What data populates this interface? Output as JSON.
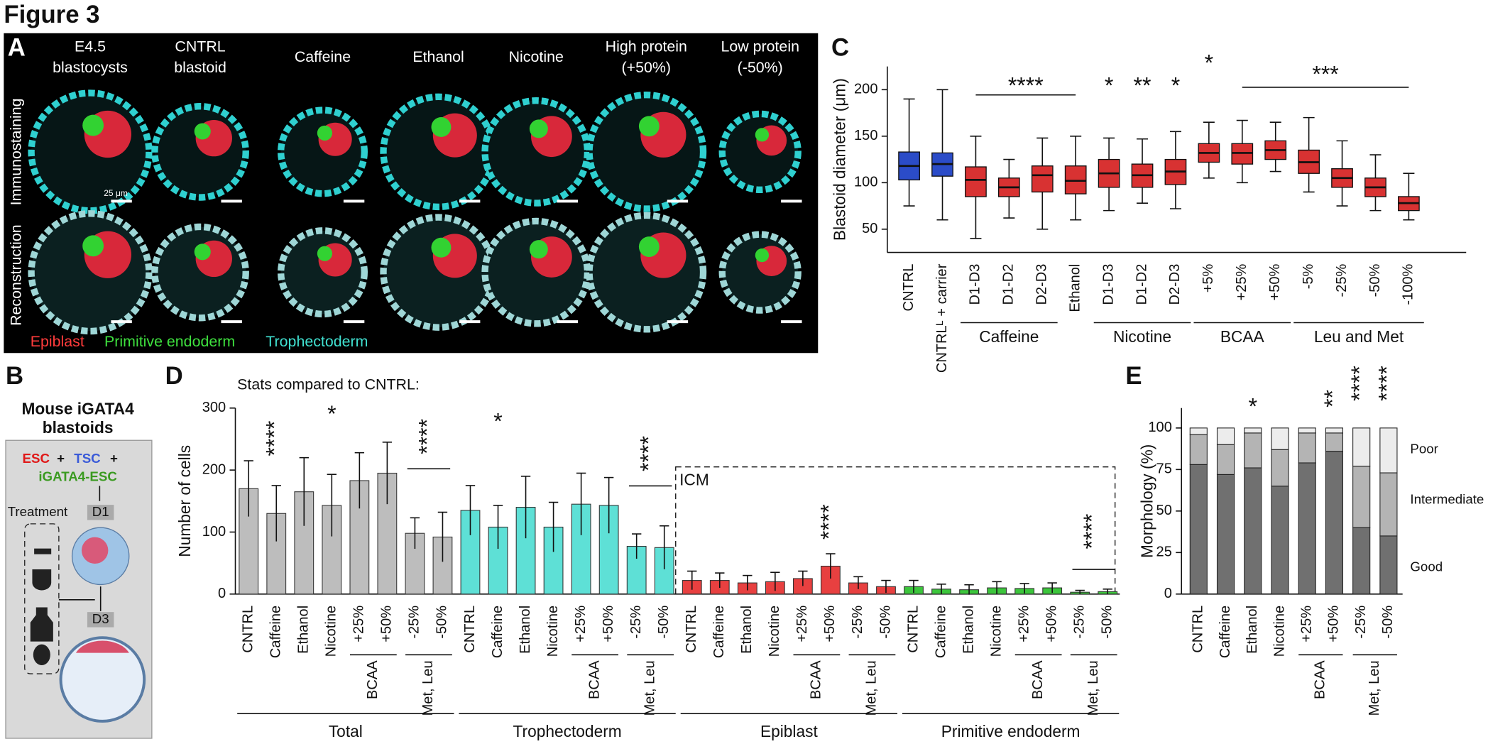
{
  "figure": {
    "title": "Figure 3",
    "panel_labels": [
      "A",
      "B",
      "C",
      "D",
      "E"
    ]
  },
  "panel_a": {
    "columns": [
      [
        "E4.5",
        "blastocysts"
      ],
      [
        "CNTRL",
        "blastoid"
      ],
      [
        "Caffeine"
      ],
      [
        "Ethanol"
      ],
      [
        "Nicotine"
      ],
      [
        "High protein",
        "(+50%)"
      ],
      [
        "Low protein",
        "(-50%)"
      ]
    ],
    "rows": [
      "Immunostaining",
      "Reconstruction"
    ],
    "legend": [
      "Epiblast",
      "Primitive endoderm",
      "Trophectoderm"
    ],
    "scale_bar": "25 μm"
  },
  "panel_b": {
    "title": [
      "Mouse iGATA4",
      "blastoids"
    ],
    "cells": [
      "ESC",
      "+",
      "TSC",
      "+",
      "iGATA4-ESC"
    ],
    "treatment": "Treatment",
    "days": [
      "D1",
      "D3"
    ]
  },
  "chart_data": [
    {
      "type": "box",
      "ylabel": "Blastoid diameter (μm)",
      "categories": [
        "CNTRL",
        "CNTRLᴸ + carrier",
        "D1-D3",
        "D1-D2",
        "D2-D3",
        "Ethanol",
        "D1-D3",
        "D1-D2",
        "D2-D3",
        "+5%",
        "+25%",
        "+50%",
        "-5%",
        "-25%",
        "-50%",
        "-100%"
      ],
      "groups": [
        "Caffeine",
        "Nicotine",
        "BCAA",
        "Leu and Met"
      ],
      "annotations": [
        "****",
        "*",
        "**",
        "*",
        "*",
        "***"
      ],
      "colors": [
        "#2b4cc8",
        "#2b4cc8",
        "#d83232",
        "#d83232",
        "#d83232",
        "#d83232",
        "#d83232",
        "#d83232",
        "#d83232",
        "#d83232",
        "#d83232",
        "#d83232",
        "#d83232",
        "#d83232",
        "#d83232",
        "#d83232"
      ],
      "median": [
        118,
        120,
        103,
        95,
        108,
        102,
        110,
        108,
        112,
        132,
        132,
        135,
        122,
        105,
        95,
        78
      ],
      "q1": [
        103,
        107,
        85,
        85,
        90,
        88,
        95,
        95,
        98,
        122,
        120,
        125,
        110,
        95,
        85,
        70
      ],
      "q3": [
        133,
        132,
        117,
        105,
        118,
        118,
        125,
        120,
        125,
        142,
        142,
        145,
        135,
        115,
        105,
        85
      ],
      "whisker_low": [
        75,
        60,
        40,
        62,
        50,
        60,
        70,
        78,
        72,
        105,
        100,
        112,
        90,
        75,
        70,
        60
      ],
      "whisker_high": [
        190,
        200,
        150,
        125,
        148,
        150,
        148,
        147,
        155,
        165,
        167,
        165,
        170,
        145,
        130,
        110
      ],
      "ylim": [
        25,
        225
      ],
      "yticks": [
        50,
        100,
        150,
        200
      ]
    },
    {
      "type": "bar",
      "subtitle": "Stats compared to CNTRL:",
      "ylabel": "Number of cells",
      "box_label": "ICM",
      "categories": [
        "CNTRL",
        "Caffeine",
        "Ethanol",
        "Nicotine",
        "+25%",
        "+50%",
        "-25%",
        "-50%"
      ],
      "subgroups": [
        "BCAA",
        "Met, Leu"
      ],
      "series": [
        {
          "name": "Total",
          "color": "#bdbdbd",
          "values": [
            170,
            130,
            165,
            143,
            183,
            195,
            98,
            92
          ],
          "errors": [
            45,
            45,
            55,
            50,
            45,
            50,
            25,
            40
          ]
        },
        {
          "name": "Trophectoderm",
          "color": "#5ee0d6",
          "values": [
            135,
            108,
            140,
            108,
            145,
            143,
            77,
            75
          ],
          "errors": [
            40,
            35,
            50,
            40,
            50,
            45,
            20,
            35
          ]
        },
        {
          "name": "Epiblast",
          "color": "#e84040",
          "values": [
            22,
            22,
            18,
            20,
            25,
            45,
            18,
            12
          ],
          "errors": [
            15,
            12,
            12,
            15,
            12,
            20,
            10,
            10
          ]
        },
        {
          "name": "Primitive endoderm",
          "color": "#3cc63c",
          "values": [
            12,
            8,
            7,
            10,
            9,
            10,
            3,
            4
          ],
          "errors": [
            10,
            8,
            8,
            10,
            8,
            8,
            3,
            4
          ]
        }
      ],
      "annotations": [
        "****",
        "*",
        "****",
        "*",
        "****",
        "****",
        "****"
      ],
      "ylim": [
        0,
        300
      ],
      "yticks": [
        0,
        100,
        200,
        300
      ]
    },
    {
      "type": "stacked_bar",
      "ylabel": "Morphology (%)",
      "categories": [
        "CNTRL",
        "Caffeine",
        "Ethanol",
        "Nicotine",
        "+25%",
        "+50%",
        "-25%",
        "-50%"
      ],
      "subgroups": [
        "BCAA",
        "Met, Leu"
      ],
      "series": [
        {
          "name": "Good",
          "color": "#707070",
          "values": [
            78,
            72,
            76,
            65,
            79,
            86,
            40,
            35
          ]
        },
        {
          "name": "Intermediate",
          "color": "#b4b4b4",
          "values": [
            18,
            18,
            21,
            22,
            18,
            11,
            37,
            38
          ]
        },
        {
          "name": "Poor",
          "color": "#ececec",
          "values": [
            4,
            10,
            3,
            13,
            3,
            3,
            23,
            27
          ]
        }
      ],
      "annotations": [
        "*",
        "**",
        "****",
        "****"
      ],
      "ylim": [
        0,
        112
      ],
      "yticks": [
        0,
        25,
        50,
        75,
        100
      ]
    }
  ]
}
